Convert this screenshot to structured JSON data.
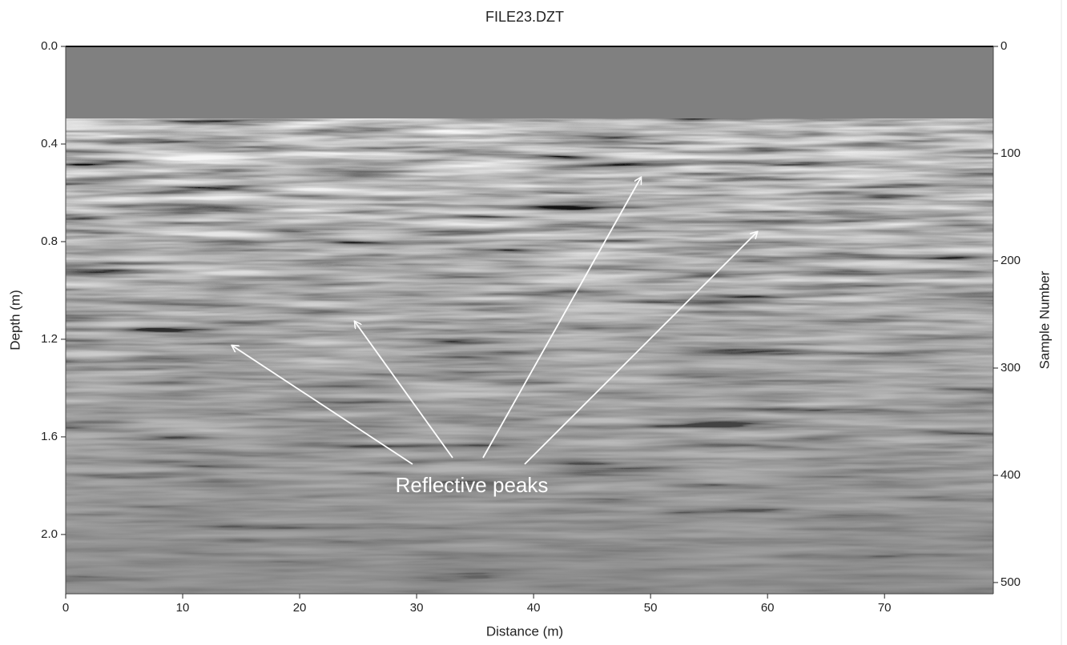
{
  "chart_data": {
    "type": "radargram",
    "title": "FILE23.DZT",
    "x_label": "Distance (m)",
    "y_label": "Depth (m)",
    "y2_label": "Sample Number",
    "annotation": "Reflective peaks",
    "xlim": [
      0,
      79.3
    ],
    "xticks": [
      0,
      10,
      20,
      30,
      40,
      50,
      60,
      70
    ],
    "ylim": [
      2.243,
      0
    ],
    "yticks": [
      {
        "value": 0,
        "label": "0.0"
      },
      0.4,
      0.8,
      1.2,
      1.6,
      {
        "value": 2,
        "label": "2.0"
      }
    ],
    "y2lim": [
      510.5,
      0
    ],
    "y2ticks": [
      0,
      100,
      200,
      300,
      400,
      500
    ]
  }
}
